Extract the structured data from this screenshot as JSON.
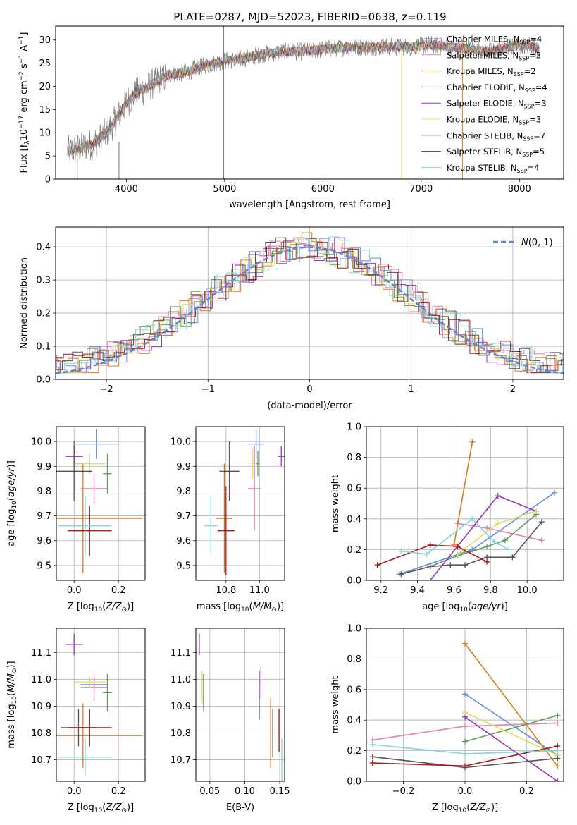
{
  "figure_title": "PLATE=0287, MJD=52023, FIBERID=0638, z=0.119",
  "colors": {
    "Chabrier MILES": "#6a8fdc",
    "Salpeter MILES": "#e87fb0",
    "Kroupa MILES": "#d97d1c",
    "Chabrier ELODIE": "#5f9a5f",
    "Salpeter ELODIE": "#9a34b5",
    "Kroupa ELODIE": "#d9e060",
    "Chabrier STELIB": "#555555",
    "Salpeter STELIB": "#b01818",
    "Kroupa STELIB": "#7fd6e0",
    "spectrum": "#777777",
    "gaussian": "#5b86d6",
    "grid": "#b0b0b0"
  },
  "chart_data": [
    {
      "id": "spectrum",
      "type": "line",
      "xlabel": "wavelength [Angstrom, rest frame]",
      "ylabel": "Flux [f_λ10^-17 erg cm^-2 s^-1 A^-1]",
      "xlim": [
        3280,
        8450
      ],
      "ylim": [
        0,
        33
      ],
      "xticks": [
        4000,
        5000,
        6000,
        7000,
        8000
      ],
      "yticks": [
        0,
        5,
        10,
        15,
        20,
        25,
        30
      ],
      "grid": false,
      "legend_position": "right",
      "legend": [
        {
          "model": "Chabrier MILES",
          "n": "4"
        },
        {
          "model": "Salpeter MILES",
          "n": "3"
        },
        {
          "model": "Kroupa MILES",
          "n": "2"
        },
        {
          "model": "Chabrier ELODIE",
          "n": "4"
        },
        {
          "model": "Salpeter ELODIE",
          "n": "3"
        },
        {
          "model": "Kroupa ELODIE",
          "n": "3"
        },
        {
          "model": "Chabrier STELIB",
          "n": "7"
        },
        {
          "model": "Salpeter STELIB",
          "n": "5"
        },
        {
          "model": "Kroupa STELIB",
          "n": "4"
        }
      ],
      "trend": {
        "x": [
          3400,
          3500,
          3650,
          3800,
          3900,
          4000,
          4100,
          4200,
          4300,
          4450,
          4600,
          4800,
          5000,
          5200,
          5400,
          5600,
          5800,
          6000,
          6300,
          6600,
          6900,
          7100,
          7300,
          7500,
          7700,
          7900,
          8100,
          8200
        ],
        "y": [
          6,
          6.5,
          7.5,
          10,
          13,
          16.5,
          18.5,
          19.5,
          21,
          22.5,
          23,
          24.5,
          25.5,
          26,
          27,
          27.5,
          27.5,
          28,
          28.5,
          28.5,
          28.5,
          29,
          28.5,
          28,
          27.5,
          28.5,
          29,
          28
        ]
      }
    },
    {
      "id": "residuals",
      "type": "bar",
      "xlabel": "(data-model)/error",
      "ylabel": "Normed distribution",
      "xlim": [
        -2.5,
        2.5
      ],
      "ylim": [
        0,
        0.46
      ],
      "xticks": [
        -2,
        -1,
        0,
        1,
        2
      ],
      "yticks": [
        0.0,
        0.1,
        0.2,
        0.3,
        0.4
      ],
      "grid": true,
      "legend_position": "top-right",
      "legend": "N(0,1)"
    },
    {
      "id": "age-vs-Z",
      "type": "scatter",
      "xlabel": "Z [log10(Z/Z⊙)]",
      "ylabel": "age [log10(age/yr)]",
      "xlim": [
        -0.08,
        0.32
      ],
      "ylim": [
        9.44,
        10.06
      ],
      "xticks": [
        0.0,
        0.2
      ],
      "yticks": [
        9.5,
        9.6,
        9.7,
        9.8,
        9.9,
        10.0
      ],
      "grid": true,
      "points": [
        {
          "model": "Chabrier MILES",
          "x": 0.1,
          "y": 9.99,
          "xerr": 0.1,
          "yerr": 0.06
        },
        {
          "model": "Salpeter MILES",
          "x": 0.09,
          "y": 9.81,
          "xerr": 0.06,
          "yerr": 0.06
        },
        {
          "model": "Kroupa MILES",
          "x": 0.04,
          "y": 9.69,
          "xerr": 0.27,
          "yerr": 0.22
        },
        {
          "model": "Chabrier ELODIE",
          "x": 0.15,
          "y": 9.87,
          "xerr": 0.02,
          "yerr": 0.08
        },
        {
          "model": "Salpeter ELODIE",
          "x": 0.0,
          "y": 9.94,
          "xerr": 0.04,
          "yerr": 0.04
        },
        {
          "model": "Kroupa ELODIE",
          "x": 0.07,
          "y": 9.91,
          "xerr": 0.07,
          "yerr": 0.04
        },
        {
          "model": "Chabrier STELIB",
          "x": 0.0,
          "y": 9.88,
          "xerr": 0.08,
          "yerr": 0.12
        },
        {
          "model": "Salpeter STELIB",
          "x": 0.07,
          "y": 9.64,
          "xerr": 0.1,
          "yerr": 0.1
        },
        {
          "model": "Kroupa STELIB",
          "x": 0.05,
          "y": 9.66,
          "xerr": 0.12,
          "yerr": 0.12
        }
      ]
    },
    {
      "id": "age-vs-mass",
      "type": "scatter",
      "xlabel": "mass [log10(M/M⊙)]",
      "ylabel": "",
      "xlim": [
        10.62,
        11.15
      ],
      "ylim": [
        9.44,
        10.06
      ],
      "xticks": [
        10.8,
        11.0
      ],
      "yticks": [
        9.5,
        9.6,
        9.7,
        9.8,
        9.9,
        10.0
      ],
      "grid": true,
      "points": [
        {
          "model": "Chabrier MILES",
          "x": 10.98,
          "y": 9.99,
          "xerr": 0.05,
          "yerr": 0.06
        },
        {
          "model": "Salpeter MILES",
          "x": 10.97,
          "y": 9.81,
          "xerr": 0.04,
          "yerr": 0.17
        },
        {
          "model": "Kroupa MILES",
          "x": 10.79,
          "y": 9.69,
          "xerr": 0.05,
          "yerr": 0.22
        },
        {
          "model": "Chabrier ELODIE",
          "x": 10.99,
          "y": 9.91,
          "xerr": 0.01,
          "yerr": 0.05
        },
        {
          "model": "Salpeter ELODIE",
          "x": 11.13,
          "y": 9.94,
          "xerr": 0.02,
          "yerr": 0.04
        },
        {
          "model": "Kroupa ELODIE",
          "x": 10.96,
          "y": 9.91,
          "xerr": 0.01,
          "yerr": 0.06
        },
        {
          "model": "Chabrier STELIB",
          "x": 10.82,
          "y": 9.88,
          "xerr": 0.06,
          "yerr": 0.12
        },
        {
          "model": "Salpeter STELIB",
          "x": 10.8,
          "y": 9.64,
          "xerr": 0.05,
          "yerr": 0.18
        },
        {
          "model": "Kroupa STELIB",
          "x": 10.71,
          "y": 9.66,
          "xerr": 0.04,
          "yerr": 0.12
        }
      ]
    },
    {
      "id": "weight-vs-age",
      "type": "line",
      "xlabel": "age [log10(age/yr)]",
      "ylabel": "mass weight",
      "xlim": [
        9.12,
        10.2
      ],
      "ylim": [
        0,
        1.0
      ],
      "xticks": [
        9.2,
        9.4,
        9.6,
        9.8,
        10.0
      ],
      "yticks": [
        0.0,
        0.2,
        0.4,
        0.6,
        0.8,
        1.0
      ],
      "grid": true,
      "series": [
        {
          "model": "Chabrier MILES",
          "x": [
            9.3,
            9.7,
            10.15
          ],
          "y": [
            0.04,
            0.2,
            0.57
          ]
        },
        {
          "model": "Salpeter MILES",
          "x": [
            9.62,
            9.78,
            10.08
          ],
          "y": [
            0.37,
            0.34,
            0.26
          ]
        },
        {
          "model": "Kroupa MILES",
          "x": [
            9.6,
            9.7
          ],
          "y": [
            0.23,
            0.9
          ]
        },
        {
          "model": "Chabrier ELODIE",
          "x": [
            9.47,
            9.62,
            9.78,
            9.88,
            10.05
          ],
          "y": [
            0.09,
            0.16,
            0.22,
            0.26,
            0.43
          ]
        },
        {
          "model": "Salpeter ELODIE",
          "x": [
            9.47,
            9.84,
            10.05
          ],
          "y": [
            0.0,
            0.55,
            0.45
          ]
        },
        {
          "model": "Kroupa ELODIE",
          "x": [
            9.62,
            9.84,
            10.05
          ],
          "y": [
            0.17,
            0.37,
            0.45
          ]
        },
        {
          "model": "Chabrier STELIB",
          "x": [
            9.31,
            9.47,
            9.58,
            9.66,
            9.78,
            9.92,
            10.08
          ],
          "y": [
            0.04,
            0.09,
            0.1,
            0.1,
            0.15,
            0.15,
            0.38
          ]
        },
        {
          "model": "Salpeter STELIB",
          "x": [
            9.18,
            9.47,
            9.62,
            9.78
          ],
          "y": [
            0.1,
            0.23,
            0.22,
            0.12
          ]
        },
        {
          "model": "Kroupa STELIB",
          "x": [
            9.31,
            9.45,
            9.7,
            9.82,
            9.9
          ],
          "y": [
            0.19,
            0.17,
            0.4,
            0.25,
            0.2
          ]
        }
      ]
    },
    {
      "id": "mass-vs-Z",
      "type": "scatter",
      "xlabel": "Z [log10(Z/Z⊙)]",
      "ylabel": "mass [log10(M/M⊙)]",
      "xlim": [
        -0.08,
        0.32
      ],
      "ylim": [
        10.62,
        11.19
      ],
      "xticks": [
        0.0,
        0.2
      ],
      "yticks": [
        10.7,
        10.8,
        10.9,
        11.0,
        11.1
      ],
      "grid": true,
      "points": [
        {
          "model": "Chabrier MILES",
          "x": 0.09,
          "y": 10.98,
          "xerr": 0.06,
          "yerr": 0.02
        },
        {
          "model": "Salpeter MILES",
          "x": 0.09,
          "y": 10.97,
          "xerr": 0.06,
          "yerr": 0.05
        },
        {
          "model": "Kroupa MILES",
          "x": 0.04,
          "y": 10.79,
          "xerr": 0.27,
          "yerr": 0.12
        },
        {
          "model": "Chabrier ELODIE",
          "x": 0.15,
          "y": 10.95,
          "xerr": 0.02,
          "yerr": 0.07
        },
        {
          "model": "Salpeter ELODIE",
          "x": 0.0,
          "y": 11.13,
          "xerr": 0.04,
          "yerr": 0.04
        },
        {
          "model": "Kroupa ELODIE",
          "x": 0.07,
          "y": 10.99,
          "xerr": 0.07,
          "yerr": 0.02
        },
        {
          "model": "Chabrier STELIB",
          "x": 0.02,
          "y": 10.82,
          "xerr": 0.08,
          "yerr": 0.07
        },
        {
          "model": "Salpeter STELIB",
          "x": 0.07,
          "y": 10.82,
          "xerr": 0.1,
          "yerr": 0.07
        },
        {
          "model": "Kroupa STELIB",
          "x": 0.05,
          "y": 10.71,
          "xerr": 0.12,
          "yerr": 0.07
        }
      ]
    },
    {
      "id": "mass-vs-ebv",
      "type": "scatter",
      "xlabel": "E(B-V)",
      "ylabel": "",
      "xlim": [
        0.03,
        0.157
      ],
      "ylim": [
        10.62,
        11.19
      ],
      "xticks": [
        0.05,
        0.1,
        0.15
      ],
      "yticks": [
        10.7,
        10.8,
        10.9,
        11.0,
        11.1
      ],
      "grid": true,
      "points": [
        {
          "model": "Chabrier MILES",
          "x": 0.121,
          "y": 10.94,
          "xerr": 0.0,
          "yerr": 0.09
        },
        {
          "model": "Salpeter MILES",
          "x": 0.123,
          "y": 10.99,
          "xerr": 0.0,
          "yerr": 0.06
        },
        {
          "model": "Kroupa MILES",
          "x": 0.137,
          "y": 10.8,
          "xerr": 0.0,
          "yerr": 0.13
        },
        {
          "model": "Chabrier ELODIE",
          "x": 0.041,
          "y": 10.95,
          "xerr": 0.0,
          "yerr": 0.07
        },
        {
          "model": "Salpeter ELODIE",
          "x": 0.035,
          "y": 11.13,
          "xerr": 0.0,
          "yerr": 0.04
        },
        {
          "model": "Kroupa ELODIE",
          "x": 0.039,
          "y": 10.97,
          "xerr": 0.0,
          "yerr": 0.06
        },
        {
          "model": "Chabrier STELIB",
          "x": 0.14,
          "y": 10.8,
          "xerr": 0.0,
          "yerr": 0.09
        },
        {
          "model": "Salpeter STELIB",
          "x": 0.149,
          "y": 10.81,
          "xerr": 0.0,
          "yerr": 0.08
        },
        {
          "model": "Kroupa STELIB",
          "x": 0.153,
          "y": 10.7,
          "xerr": 0.0,
          "yerr": 0.08
        }
      ]
    },
    {
      "id": "weight-vs-Z",
      "type": "line",
      "xlabel": "Z [log10(Z/Z⊙)]",
      "ylabel": "mass weight",
      "xlim": [
        -0.32,
        0.32
      ],
      "ylim": [
        0,
        1.0
      ],
      "xticks": [
        -0.2,
        0.0,
        0.2
      ],
      "yticks": [
        0.0,
        0.2,
        0.4,
        0.6,
        0.8,
        1.0
      ],
      "grid": true,
      "series": [
        {
          "model": "Chabrier MILES",
          "x": [
            0.0,
            0.3
          ],
          "y": [
            0.57,
            0.17
          ]
        },
        {
          "model": "Salpeter MILES",
          "x": [
            -0.3,
            0.0,
            0.3
          ],
          "y": [
            0.27,
            0.36,
            0.38
          ]
        },
        {
          "model": "Kroupa MILES",
          "x": [
            0.0,
            0.3
          ],
          "y": [
            0.9,
            0.1
          ]
        },
        {
          "model": "Chabrier ELODIE",
          "x": [
            0.0,
            0.3
          ],
          "y": [
            0.26,
            0.43
          ]
        },
        {
          "model": "Salpeter ELODIE",
          "x": [
            0.0,
            0.3
          ],
          "y": [
            0.42,
            0.0
          ]
        },
        {
          "model": "Kroupa ELODIE",
          "x": [
            0.0,
            0.3
          ],
          "y": [
            0.45,
            0.17
          ]
        },
        {
          "model": "Chabrier STELIB",
          "x": [
            -0.3,
            0.0,
            0.3
          ],
          "y": [
            0.16,
            0.09,
            0.15
          ]
        },
        {
          "model": "Salpeter STELIB",
          "x": [
            -0.3,
            0.0,
            0.3
          ],
          "y": [
            0.12,
            0.1,
            0.23
          ]
        },
        {
          "model": "Kroupa STELIB",
          "x": [
            -0.3,
            0.0,
            0.3
          ],
          "y": [
            0.24,
            0.18,
            0.2
          ]
        }
      ]
    }
  ]
}
